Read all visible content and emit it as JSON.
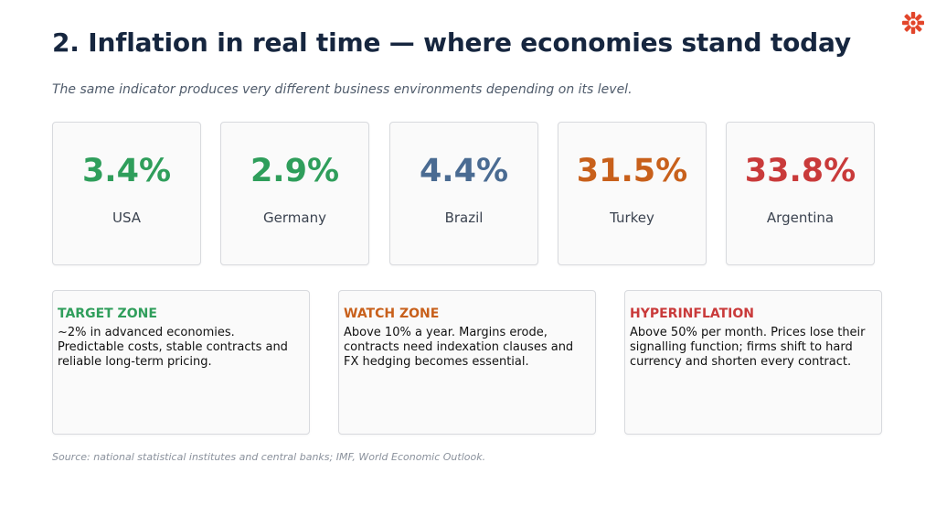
{
  "title": "2. Inflation in real time — where economies stand today",
  "subtitle": "The same indicator produces very different business environments depending on its level.",
  "logo_icon": "red-star-burst-icon",
  "stats": [
    {
      "value": "3.4%",
      "label": "USA",
      "color": "#2f9e5b"
    },
    {
      "value": "2.9%",
      "label": "Germany",
      "color": "#2f9e5b"
    },
    {
      "value": "4.4%",
      "label": "Brazil",
      "color": "#4a6b92"
    },
    {
      "value": "31.5%",
      "label": "Turkey",
      "color": "#c8601b"
    },
    {
      "value": "33.8%",
      "label": "Argentina",
      "color": "#c93a3a"
    }
  ],
  "zones": [
    {
      "title": "TARGET ZONE",
      "text": "~2% in advanced economies. Predictable costs, stable contracts and reliable long-term pricing.",
      "color": "#2f9e5b"
    },
    {
      "title": "WATCH ZONE",
      "text": "Above 10% a year. Margins erode, contracts need indexation clauses and FX hedging becomes essential.",
      "color": "#c8601b"
    },
    {
      "title": "HYPERINFLATION",
      "text": "Above 50% per month. Prices lose their signalling function; firms shift to hard currency and shorten every contract.",
      "color": "#c93a3a"
    }
  ],
  "source": "Source: national statistical institutes and central banks; IMF, World Economic Outlook."
}
